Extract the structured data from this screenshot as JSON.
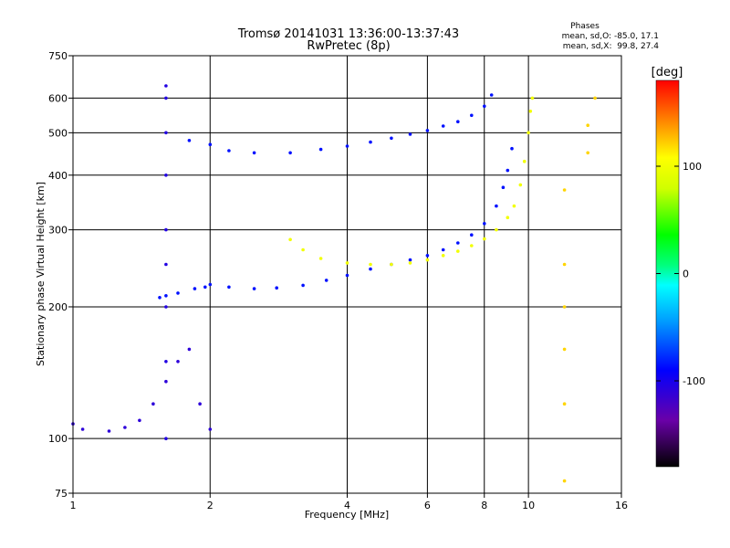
{
  "chart_data": {
    "type": "scatter",
    "title": "Tromsø 20141031 13:36:00-13:37:43",
    "subtitle": "RwPretec (8p)",
    "stats": {
      "heading": "Phases",
      "line_o": "mean, sd,O: -85.0, 17.1",
      "line_x": "mean, sd,X:  99.8, 27.4"
    },
    "xlabel": "Frequency [MHz]",
    "ylabel": "Stationary phase Virtual Height [km]",
    "x_scale": "log",
    "y_scale": "log",
    "xlim": [
      1,
      16
    ],
    "ylim": [
      75,
      750
    ],
    "x_ticks": [
      1,
      2,
      4,
      6,
      8,
      10,
      16
    ],
    "x_tick_labels": [
      "1",
      "2",
      "4",
      "6",
      "8",
      "10",
      "16"
    ],
    "y_ticks": [
      75,
      100,
      200,
      300,
      400,
      500,
      600,
      750
    ],
    "y_tick_labels": [
      "75",
      "100",
      "200",
      "300",
      "400",
      "500",
      "600",
      "750"
    ],
    "grid": true,
    "colorbar": {
      "label": "[deg]",
      "range": [
        -180,
        180
      ],
      "ticks": [
        -100,
        0,
        100
      ],
      "tick_labels": [
        "-100",
        "0",
        "100"
      ],
      "position": "right"
    },
    "series": [
      {
        "role": "O-mode F-layer trace",
        "phase_deg": -85,
        "points": [
          [
            1.55,
            210
          ],
          [
            1.6,
            212
          ],
          [
            1.7,
            215
          ],
          [
            1.85,
            220
          ],
          [
            1.95,
            222
          ],
          [
            2.0,
            225
          ],
          [
            2.2,
            222
          ],
          [
            2.5,
            220
          ],
          [
            2.8,
            221
          ],
          [
            3.2,
            224
          ],
          [
            3.6,
            230
          ],
          [
            4.0,
            236
          ],
          [
            4.5,
            244
          ],
          [
            5.0,
            250
          ],
          [
            5.5,
            256
          ],
          [
            6.0,
            262
          ],
          [
            6.5,
            270
          ],
          [
            7.0,
            280
          ],
          [
            7.5,
            292
          ],
          [
            8.0,
            310
          ],
          [
            8.5,
            340
          ],
          [
            8.8,
            375
          ],
          [
            9.0,
            410
          ],
          [
            9.2,
            460
          ]
        ]
      },
      {
        "role": "X-mode F-layer trace",
        "phase_deg": 100,
        "points": [
          [
            3.0,
            285
          ],
          [
            3.2,
            270
          ],
          [
            3.5,
            258
          ],
          [
            4.0,
            252
          ],
          [
            4.5,
            250
          ],
          [
            5.0,
            250
          ],
          [
            5.5,
            252
          ],
          [
            6.0,
            256
          ],
          [
            6.5,
            262
          ],
          [
            7.0,
            268
          ],
          [
            7.5,
            276
          ],
          [
            8.0,
            286
          ],
          [
            8.5,
            300
          ],
          [
            9.0,
            320
          ],
          [
            9.3,
            340
          ],
          [
            9.6,
            380
          ],
          [
            9.8,
            430
          ],
          [
            10.0,
            500
          ],
          [
            10.1,
            560
          ],
          [
            10.2,
            600
          ]
        ]
      },
      {
        "role": "O-mode multiple-hop trace",
        "phase_deg": -85,
        "points": [
          [
            1.8,
            480
          ],
          [
            2.0,
            470
          ],
          [
            2.2,
            455
          ],
          [
            2.5,
            450
          ],
          [
            3.0,
            450
          ],
          [
            3.5,
            458
          ],
          [
            4.0,
            466
          ],
          [
            4.5,
            476
          ],
          [
            5.0,
            486
          ],
          [
            5.5,
            496
          ],
          [
            6.0,
            506
          ],
          [
            6.5,
            518
          ],
          [
            7.0,
            530
          ],
          [
            7.5,
            548
          ],
          [
            8.0,
            575
          ],
          [
            8.3,
            610
          ]
        ]
      },
      {
        "role": "Sporadic E / low-frequency echoes",
        "phase_deg": -110,
        "points": [
          [
            1.0,
            108
          ],
          [
            1.05,
            105
          ],
          [
            1.2,
            104
          ],
          [
            1.3,
            106
          ],
          [
            1.4,
            110
          ],
          [
            1.5,
            120
          ],
          [
            1.6,
            135
          ],
          [
            1.7,
            150
          ],
          [
            1.8,
            160
          ],
          [
            1.9,
            120
          ],
          [
            2.0,
            105
          ]
        ]
      },
      {
        "role": "Vertical spread near 1.6 MHz",
        "phase_deg": -105,
        "points": [
          [
            1.6,
            100
          ],
          [
            1.6,
            150
          ],
          [
            1.6,
            200
          ],
          [
            1.6,
            250
          ],
          [
            1.6,
            300
          ],
          [
            1.6,
            400
          ],
          [
            1.6,
            500
          ],
          [
            1.6,
            600
          ],
          [
            1.6,
            640
          ]
        ]
      },
      {
        "role": "Scattered echoes near 12-14 MHz",
        "phase_deg": 120,
        "points": [
          [
            12.0,
            80
          ],
          [
            12.0,
            120
          ],
          [
            12.0,
            160
          ],
          [
            12.0,
            200
          ],
          [
            12.0,
            250
          ],
          [
            12.0,
            370
          ],
          [
            13.5,
            450
          ],
          [
            13.5,
            520
          ],
          [
            14.0,
            600
          ]
        ]
      }
    ]
  }
}
